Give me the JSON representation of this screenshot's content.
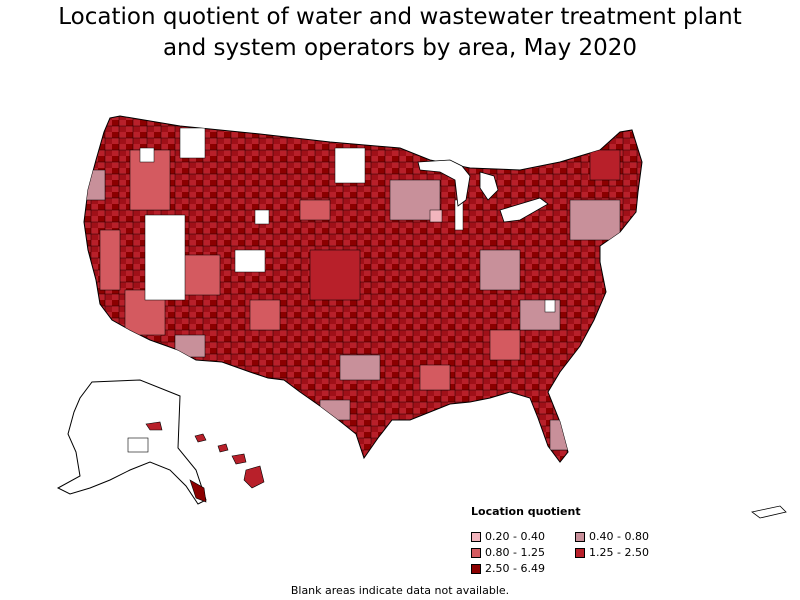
{
  "title": {
    "line1": "Location quotient of water and wastewater treatment plant",
    "line2": "and system operators by area, May 2020"
  },
  "legend": {
    "title": "Location quotient",
    "items": [
      {
        "label": "0.20 - 0.40",
        "color": "#f2b5bd"
      },
      {
        "label": "0.40 - 0.80",
        "color": "#c8909a"
      },
      {
        "label": "0.80 - 1.25",
        "color": "#d45a60"
      },
      {
        "label": "1.25 - 2.50",
        "color": "#b8202a"
      },
      {
        "label": "2.50 - 6.49",
        "color": "#8b0000"
      }
    ]
  },
  "footnote": "Blank areas indicate data not available.",
  "colors": {
    "outline": "#000000",
    "blank": "#ffffff"
  }
}
